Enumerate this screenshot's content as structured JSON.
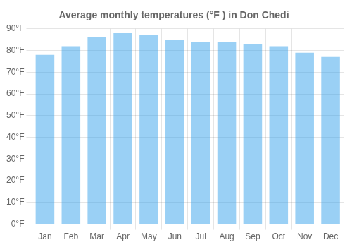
{
  "chart_data": {
    "type": "bar",
    "title": "Average monthly temperatures (°F ) in Don Chedi",
    "categories": [
      "Jan",
      "Feb",
      "Mar",
      "Apr",
      "May",
      "Jun",
      "Jul",
      "Aug",
      "Sep",
      "Oct",
      "Nov",
      "Dec"
    ],
    "values": [
      78,
      82,
      86,
      88,
      87,
      85,
      84,
      84,
      83,
      82,
      79,
      77
    ],
    "ylim": [
      0,
      90
    ],
    "yticks": [
      {
        "value": 0,
        "label": "0°F"
      },
      {
        "value": 10,
        "label": "10°F"
      },
      {
        "value": 20,
        "label": "20°F"
      },
      {
        "value": 30,
        "label": "30°F"
      },
      {
        "value": 40,
        "label": "40°F"
      },
      {
        "value": 50,
        "label": "50°F"
      },
      {
        "value": 60,
        "label": "60°F"
      },
      {
        "value": 70,
        "label": "70°F"
      },
      {
        "value": 80,
        "label": "80°F"
      },
      {
        "value": 90,
        "label": "90°F"
      }
    ],
    "grid": true
  }
}
